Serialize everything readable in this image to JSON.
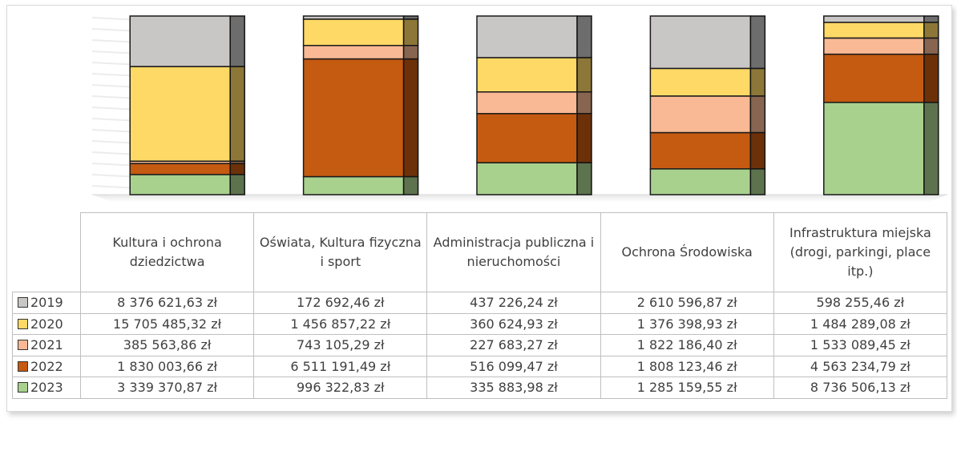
{
  "chart_data": {
    "type": "bar",
    "stacked": "percent",
    "categories": [
      "Kultura i ochrona dziedzictwa",
      "Oświata, Kultura fizyczna i sport",
      "Administracja publiczna i nieruchomości",
      "Ochrona Środowiska",
      "Infrastruktura miejska (drogi, parkingi, place itp.)"
    ],
    "series": [
      {
        "name": "2019",
        "color": "#c9c6c6",
        "values": [
          8376621.63,
          172692.46,
          437226.24,
          2610596.87,
          598255.46
        ],
        "value_labels": [
          "8 376 621,63 zł",
          "172 692,46 zł",
          "437 226,24 zł",
          "2 610 596,87 zł",
          "598 255,46 zł"
        ]
      },
      {
        "name": "2020",
        "color": "#ffd966",
        "values": [
          15705485.32,
          1456857.22,
          360624.93,
          1376398.93,
          1484289.08
        ],
        "value_labels": [
          "15 705 485,32 zł",
          "1 456 857,22 zł",
          "360 624,93 zł",
          "1 376 398,93 zł",
          "1 484 289,08 zł"
        ]
      },
      {
        "name": "2021",
        "color": "#f8b994",
        "values": [
          385563.86,
          743105.29,
          227683.27,
          1822186.4,
          1533089.45
        ],
        "value_labels": [
          "385 563,86 zł",
          "743 105,29 zł",
          "227 683,27 zł",
          "1 822 186,40 zł",
          "1 533 089,45 zł"
        ]
      },
      {
        "name": "2022",
        "color": "#c55a11",
        "values": [
          1830003.66,
          6511191.49,
          516099.47,
          1808123.46,
          4563234.79
        ],
        "value_labels": [
          "1 830 003,66 zł",
          "6 511 191,49 zł",
          "516 099,47 zł",
          "1 808 123,46 zł",
          "4 563 234,79 zł"
        ]
      },
      {
        "name": "2023",
        "color": "#a9d18e",
        "values": [
          3339370.87,
          996322.83,
          335883.98,
          1285159.55,
          8736506.13
        ],
        "value_labels": [
          "3 339 370,87 zł",
          "996 322,83 zł",
          "335 883,98 zł",
          "1 285 159,55 zł",
          "8 736 506,13 zł"
        ]
      }
    ]
  }
}
